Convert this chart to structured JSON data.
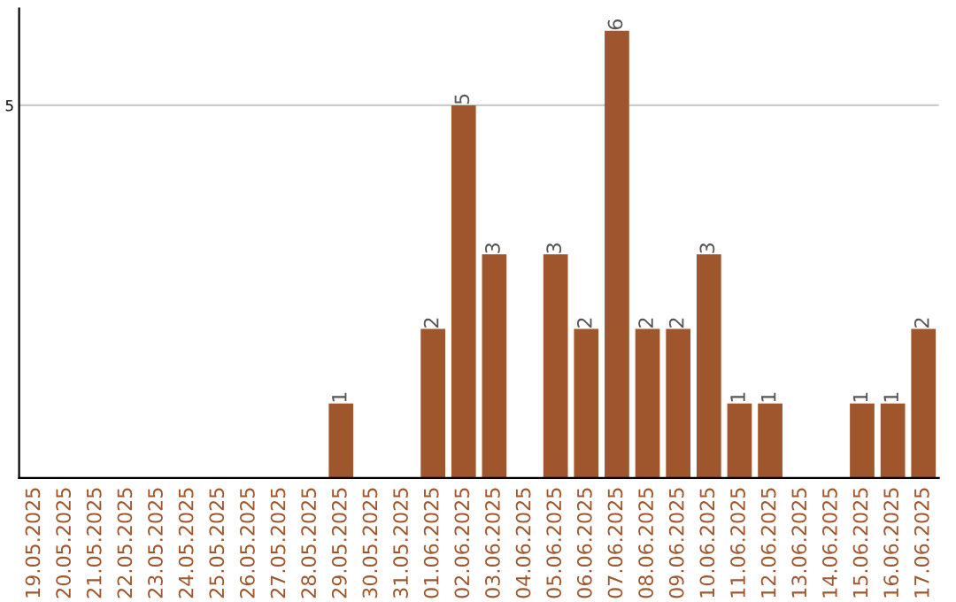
{
  "chart_data": {
    "type": "bar",
    "categories": [
      "19.05.2025",
      "20.05.2025",
      "21.05.2025",
      "22.05.2025",
      "23.05.2025",
      "24.05.2025",
      "25.05.2025",
      "26.05.2025",
      "27.05.2025",
      "28.05.2025",
      "29.05.2025",
      "30.05.2025",
      "31.05.2025",
      "01.06.2025",
      "02.06.2025",
      "03.06.2025",
      "04.06.2025",
      "05.06.2025",
      "06.06.2025",
      "07.06.2025",
      "08.06.2025",
      "09.06.2025",
      "10.06.2025",
      "11.06.2025",
      "12.06.2025",
      "13.06.2025",
      "14.06.2025",
      "15.06.2025",
      "16.06.2025",
      "17.06.2025"
    ],
    "values": [
      0,
      0,
      0,
      0,
      0,
      0,
      0,
      0,
      0,
      0,
      1,
      0,
      0,
      2,
      5,
      3,
      0,
      3,
      2,
      6,
      2,
      2,
      3,
      1,
      1,
      0,
      0,
      1,
      1,
      2
    ],
    "value_labels": [
      null,
      null,
      null,
      null,
      null,
      null,
      null,
      null,
      null,
      null,
      "1",
      null,
      null,
      "2",
      "5",
      "3",
      null,
      "3",
      "2",
      "6",
      "2",
      "2",
      "3",
      "1",
      "1",
      null,
      null,
      "1",
      "1",
      "2"
    ],
    "color": "#a0562c",
    "ylim": [
      0,
      6.3
    ],
    "yticks": [
      5
    ],
    "grid": "y"
  }
}
